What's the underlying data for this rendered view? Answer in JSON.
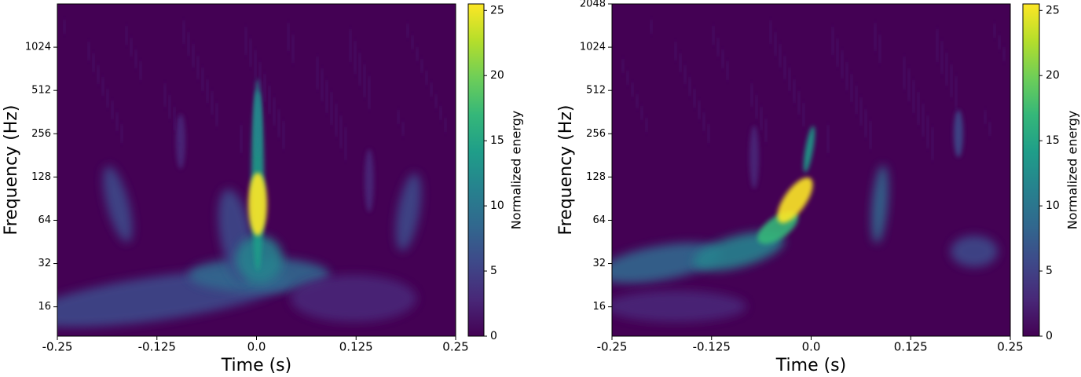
{
  "chart_data": [
    {
      "type": "spectrogram",
      "xlabel": "Time (s)",
      "ylabel": "Frequency (Hz)",
      "colorbar_label": "Normalized energy",
      "xlim": [
        -0.25,
        0.25
      ],
      "xticks": [
        -0.25,
        -0.125,
        {
          "value": 0,
          "label": "0.0"
        },
        0.125,
        0.25
      ],
      "ylim": [
        10,
        2048
      ],
      "log_y": true,
      "log_base": 2,
      "yticks": [
        16,
        32,
        64,
        128,
        256,
        512,
        1024
      ],
      "clim": [
        0,
        25.5
      ],
      "cticks": [
        0,
        5,
        10,
        15,
        20,
        25
      ],
      "colormap": [
        "#440154",
        "#482878",
        "#3e4989",
        "#31688e",
        "#26828e",
        "#1f9e89",
        "#35b779",
        "#6ece58",
        "#b5de2b",
        "#fde725"
      ]
    },
    {
      "type": "spectrogram",
      "xlabel": "Time (s)",
      "ylabel": "Frequency (Hz)",
      "colorbar_label": "Normalized energy",
      "xlim": [
        -0.25,
        0.25
      ],
      "xticks": [
        -0.25,
        -0.125,
        {
          "value": 0,
          "label": "0.0"
        },
        0.125,
        0.25
      ],
      "ylim": [
        10,
        2048
      ],
      "log_y": true,
      "log_base": 2,
      "yticks": [
        16,
        32,
        64,
        128,
        256,
        512,
        1024,
        2048
      ],
      "clim": [
        0,
        25.5
      ],
      "cticks": [
        0,
        5,
        10,
        15,
        20,
        25
      ],
      "colormap": [
        "#440154",
        "#482878",
        "#3e4989",
        "#31688e",
        "#26828e",
        "#1f9e89",
        "#35b779",
        "#6ece58",
        "#b5de2b",
        "#fde725"
      ]
    }
  ]
}
